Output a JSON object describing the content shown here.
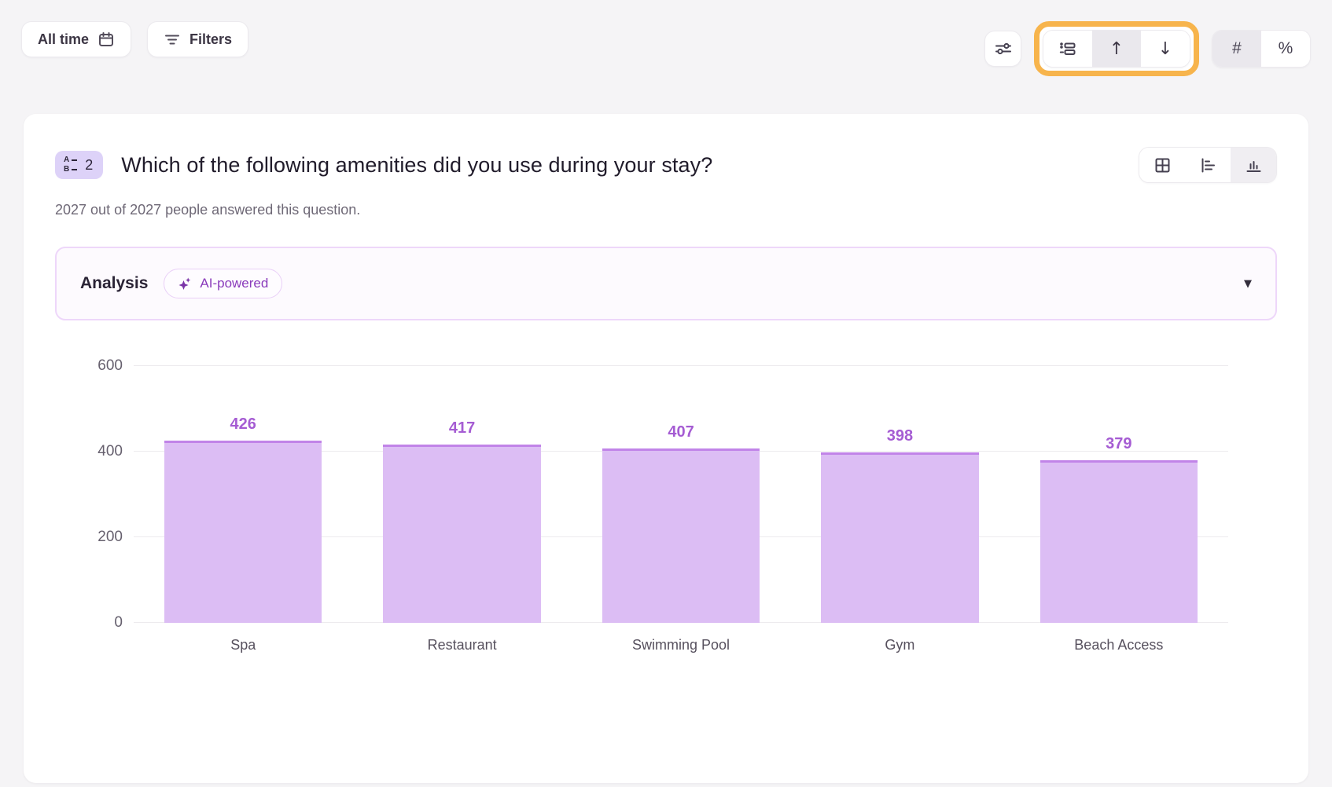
{
  "toolbar": {
    "all_time_label": "All time",
    "filters_label": "Filters"
  },
  "controls": {
    "sort_group": {
      "items": [
        "ranking",
        "sort-ascending",
        "sort-descending"
      ],
      "active": "sort-ascending",
      "up_glyph": "↑",
      "down_glyph": "↓",
      "highlight_color": "#f7b44c"
    },
    "format_group": {
      "number_label": "#",
      "percent_label": "%",
      "active": "number"
    }
  },
  "question": {
    "number": "2",
    "title": "Which of the following amenities did you use during your stay?",
    "answered_text": "2027 out of 2027 people answered this question.",
    "view_toggle": {
      "items": [
        "table",
        "horizontal-bar",
        "vertical-bar"
      ],
      "active": "vertical-bar"
    }
  },
  "analysis": {
    "label": "Analysis",
    "badge": "AI-powered",
    "caret_glyph": "▼"
  },
  "chart_data": {
    "type": "bar",
    "categories": [
      "Spa",
      "Restaurant",
      "Swimming Pool",
      "Gym",
      "Beach Access"
    ],
    "values": [
      426,
      417,
      407,
      398,
      379
    ],
    "title": "",
    "xlabel": "",
    "ylabel": "",
    "ylim": [
      0,
      600
    ],
    "yticks": [
      0,
      200,
      400,
      600
    ],
    "grid": true,
    "legend": false,
    "bar_color": "#dcbdf4",
    "bar_border_color": "#c184e8",
    "value_label_color": "#a55cd3"
  }
}
